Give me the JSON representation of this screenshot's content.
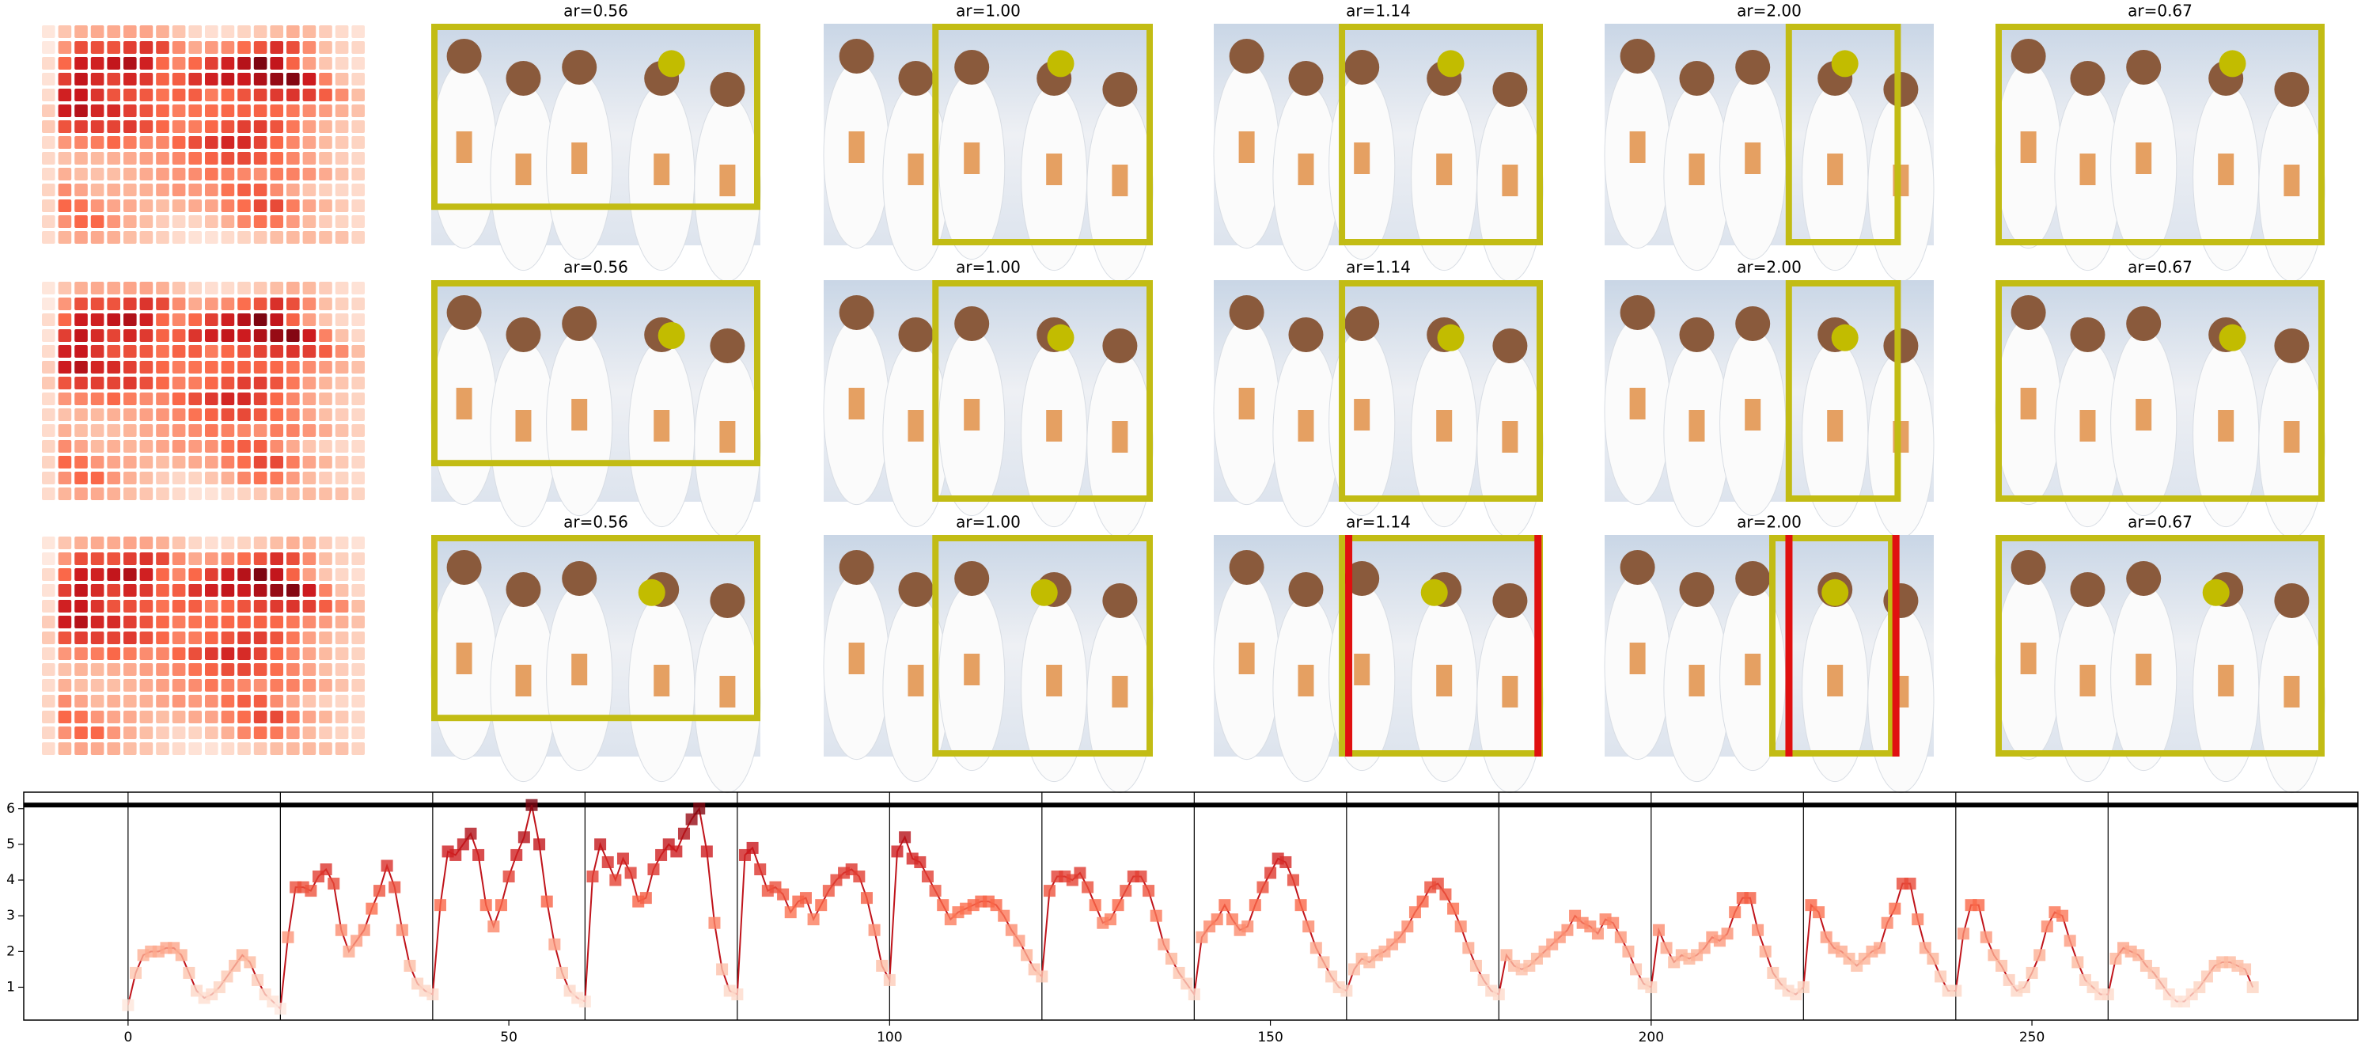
{
  "panels": {
    "titles": [
      [
        "ar=0.56",
        "ar=1.00",
        "ar=1.14",
        "ar=2.00",
        "ar=0.67"
      ],
      [
        "ar=0.56",
        "ar=1.00",
        "ar=1.14",
        "ar=2.00",
        "ar=0.67"
      ],
      [
        "ar=0.56",
        "ar=1.00",
        "ar=1.14",
        "ar=2.00",
        "ar=0.67"
      ]
    ]
  },
  "chart_data": {
    "type": "line",
    "color": "#c0141b",
    "cmap": "Reds",
    "x": [
      0,
      1,
      2,
      3,
      4,
      5,
      6,
      7,
      8,
      9,
      10,
      11,
      12,
      13,
      14,
      15,
      16,
      17,
      18,
      19,
      20,
      21,
      22,
      23,
      24,
      25,
      26,
      27,
      28,
      29,
      30,
      31,
      32,
      33,
      34,
      35,
      36,
      37,
      38,
      39,
      40,
      41,
      42,
      43,
      44,
      45,
      46,
      47,
      48,
      49,
      50,
      51,
      52,
      53,
      54,
      55,
      56,
      57,
      58,
      59,
      60,
      61,
      62,
      63,
      64,
      65,
      66,
      67,
      68,
      69,
      70,
      71,
      72,
      73,
      74,
      75,
      76,
      77,
      78,
      79,
      80,
      81,
      82,
      83,
      84,
      85,
      86,
      87,
      88,
      89,
      90,
      91,
      92,
      93,
      94,
      95,
      96,
      97,
      98,
      99,
      100,
      101,
      102,
      103,
      104,
      105,
      106,
      107,
      108,
      109,
      110,
      111,
      112,
      113,
      114,
      115,
      116,
      117,
      118,
      119,
      120,
      121,
      122,
      123,
      124,
      125,
      126,
      127,
      128,
      129,
      130,
      131,
      132,
      133,
      134,
      135,
      136,
      137,
      138,
      139,
      140,
      141,
      142,
      143,
      144,
      145,
      146,
      147,
      148,
      149,
      150,
      151,
      152,
      153,
      154,
      155,
      156,
      157,
      158,
      159,
      160,
      161,
      162,
      163,
      164,
      165,
      166,
      167,
      168,
      169,
      170,
      171,
      172,
      173,
      174,
      175,
      176,
      177,
      178,
      179,
      180,
      181,
      182,
      183,
      184,
      185,
      186,
      187,
      188,
      189,
      190,
      191,
      192,
      193,
      194,
      195,
      196,
      197,
      198,
      199,
      200,
      201,
      202,
      203,
      204,
      205,
      206,
      207,
      208,
      209,
      210,
      211,
      212,
      213,
      214,
      215,
      216,
      217,
      218,
      219,
      220,
      221,
      222,
      223,
      224,
      225,
      226,
      227,
      228,
      229,
      230,
      231,
      232,
      233,
      234,
      235,
      236,
      237,
      238,
      239,
      240,
      241,
      242,
      243,
      244,
      245,
      246,
      247,
      248,
      249,
      250,
      251,
      252,
      253,
      254,
      255,
      256,
      257,
      258,
      259,
      260,
      261,
      262,
      263,
      264,
      265,
      266,
      267,
      268,
      269,
      270,
      271,
      272,
      273,
      274,
      275,
      276,
      277,
      278,
      279
    ],
    "values": [
      0.5,
      1.4,
      1.9,
      2.0,
      2.0,
      2.1,
      2.1,
      1.9,
      1.4,
      0.9,
      0.7,
      0.8,
      1.0,
      1.3,
      1.6,
      1.9,
      1.7,
      1.2,
      0.8,
      0.6,
      0.4,
      2.4,
      3.8,
      3.8,
      3.7,
      4.1,
      4.3,
      3.9,
      2.6,
      2.0,
      2.3,
      2.6,
      3.2,
      3.7,
      4.4,
      3.8,
      2.6,
      1.6,
      1.1,
      0.9,
      0.8,
      3.3,
      4.8,
      4.7,
      5.0,
      5.3,
      4.7,
      3.3,
      2.7,
      3.3,
      4.1,
      4.7,
      5.2,
      6.1,
      5.0,
      3.4,
      2.2,
      1.4,
      0.9,
      0.7,
      0.6,
      4.1,
      5.0,
      4.5,
      4.0,
      4.6,
      4.2,
      3.4,
      3.5,
      4.3,
      4.7,
      5.0,
      4.8,
      5.3,
      5.7,
      6.0,
      4.8,
      2.8,
      1.5,
      0.9,
      0.8,
      4.7,
      4.9,
      4.3,
      3.7,
      3.8,
      3.6,
      3.1,
      3.4,
      3.5,
      2.9,
      3.3,
      3.7,
      4.0,
      4.2,
      4.3,
      4.1,
      3.5,
      2.6,
      1.6,
      1.2,
      4.8,
      5.2,
      4.6,
      4.5,
      4.1,
      3.7,
      3.3,
      2.9,
      3.1,
      3.2,
      3.3,
      3.4,
      3.4,
      3.3,
      3.0,
      2.6,
      2.3,
      1.9,
      1.5,
      1.3,
      3.7,
      4.1,
      4.1,
      4.0,
      4.2,
      3.8,
      3.3,
      2.8,
      2.9,
      3.3,
      3.7,
      4.1,
      4.1,
      3.7,
      3.0,
      2.2,
      1.8,
      1.4,
      1.1,
      0.8,
      2.4,
      2.7,
      2.9,
      3.3,
      2.9,
      2.6,
      2.7,
      3.3,
      3.8,
      4.2,
      4.6,
      4.5,
      4.0,
      3.3,
      2.7,
      2.1,
      1.7,
      1.3,
      1.0,
      0.9,
      1.5,
      1.8,
      1.7,
      1.9,
      2.0,
      2.2,
      2.4,
      2.7,
      3.1,
      3.4,
      3.8,
      3.9,
      3.6,
      3.2,
      2.7,
      2.1,
      1.6,
      1.2,
      0.9,
      0.8,
      1.9,
      1.6,
      1.5,
      1.6,
      1.8,
      2.0,
      2.2,
      2.4,
      2.6,
      3.0,
      2.8,
      2.7,
      2.5,
      2.9,
      2.8,
      2.4,
      2.0,
      1.5,
      1.1,
      1.0,
      2.6,
      2.1,
      1.7,
      1.9,
      1.8,
      1.9,
      2.1,
      2.4,
      2.3,
      2.5,
      3.1,
      3.5,
      3.5,
      2.6,
      2.0,
      1.4,
      1.1,
      0.9,
      0.8,
      1.0,
      3.3,
      3.1,
      2.4,
      2.1,
      2.0,
      1.8,
      1.6,
      1.8,
      2.0,
      2.1,
      2.8,
      3.2,
      3.9,
      3.9,
      2.9,
      2.1,
      1.8,
      1.3,
      0.9,
      0.9,
      2.5,
      3.3,
      3.3,
      2.4,
      1.9,
      1.6,
      1.2,
      0.9,
      1.0,
      1.4,
      1.9,
      2.7,
      3.1,
      3.0,
      2.3,
      1.7,
      1.2,
      1.0,
      0.8,
      0.8,
      1.8,
      2.1,
      2.0,
      1.9,
      1.6,
      1.4,
      1.1,
      0.8,
      0.6,
      0.6,
      0.8,
      1.0,
      1.3,
      1.6,
      1.7,
      1.7,
      1.6,
      1.5,
      1.0
    ],
    "xlim": [
      -13.7,
      292.8
    ],
    "ylim": [
      0.08,
      6.46
    ],
    "xticks": [
      0,
      50,
      100,
      150,
      200,
      250
    ],
    "yticks": [
      1,
      2,
      3,
      4,
      5,
      6
    ],
    "vlines": [
      0,
      20,
      40,
      60,
      80,
      100,
      120,
      140,
      160,
      180,
      200,
      220,
      240,
      260
    ],
    "hline": 6.1
  }
}
